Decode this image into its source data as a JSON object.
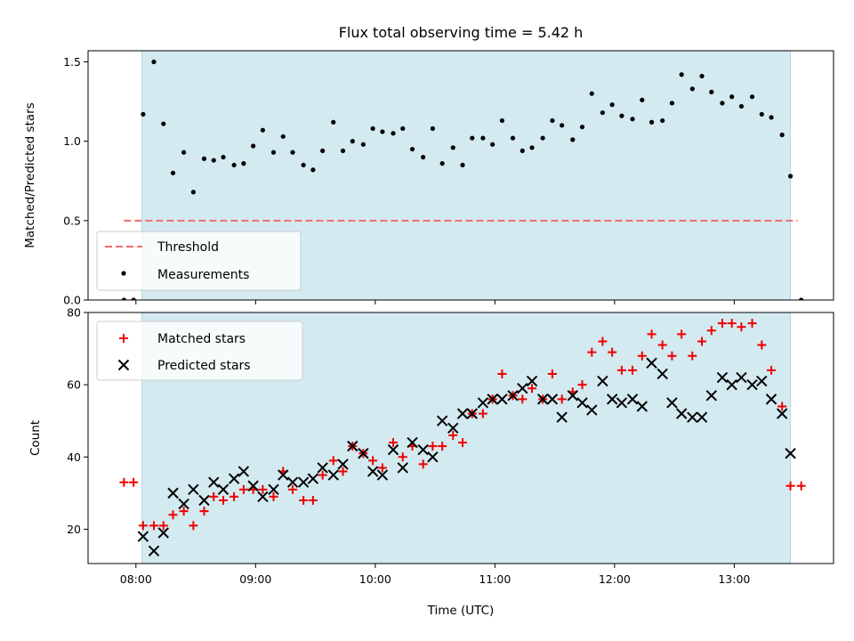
{
  "chart_data": [
    {
      "panel": "top",
      "type": "scatter",
      "title": "Flux total observing time = 5.42 h",
      "ylabel": "Matched/Predicted stars",
      "xlabel": "",
      "xlim": [
        7.6,
        13.83
      ],
      "ylim": [
        0,
        1.57
      ],
      "yticks": [
        0.0,
        0.5,
        1.0,
        1.5
      ],
      "ytick_labels": [
        "0.0",
        "0.5",
        "1.0",
        "1.5"
      ],
      "shaded_interval": [
        8.05,
        13.47
      ],
      "shade_color": "#d3eaf0",
      "threshold": {
        "name": "Threshold",
        "value": 0.5,
        "x_range": [
          7.9,
          13.53
        ],
        "color": "#f06d6d"
      },
      "legend": {
        "position": "lower-left",
        "entries": [
          "Threshold",
          "Measurements"
        ]
      },
      "series": [
        {
          "name": "Measurements",
          "marker": "dot",
          "color": "#000000",
          "x": [
            7.9,
            7.98,
            8.06,
            8.15,
            8.23,
            8.31,
            8.4,
            8.48,
            8.57,
            8.65,
            8.73,
            8.82,
            8.9,
            8.98,
            9.06,
            9.15,
            9.23,
            9.31,
            9.4,
            9.48,
            9.56,
            9.65,
            9.73,
            9.81,
            9.9,
            9.98,
            10.06,
            10.15,
            10.23,
            10.31,
            10.4,
            10.48,
            10.56,
            10.65,
            10.73,
            10.81,
            10.9,
            10.98,
            11.06,
            11.15,
            11.23,
            11.31,
            11.4,
            11.48,
            11.56,
            11.65,
            11.73,
            11.81,
            11.9,
            11.98,
            12.06,
            12.15,
            12.23,
            12.31,
            12.4,
            12.48,
            12.56,
            12.65,
            12.73,
            12.81,
            12.9,
            12.98,
            13.06,
            13.15,
            13.23,
            13.31,
            13.4,
            13.47,
            13.56
          ],
          "y": [
            0.0,
            0.0,
            1.17,
            1.5,
            1.11,
            0.8,
            0.93,
            0.68,
            0.89,
            0.88,
            0.9,
            0.85,
            0.86,
            0.97,
            1.07,
            0.93,
            1.03,
            0.93,
            0.85,
            0.82,
            0.94,
            1.12,
            0.94,
            1.0,
            0.98,
            1.08,
            1.06,
            1.05,
            1.08,
            0.95,
            0.9,
            1.08,
            0.86,
            0.96,
            0.85,
            1.02,
            1.02,
            0.98,
            1.13,
            1.02,
            0.94,
            0.96,
            1.02,
            1.13,
            1.1,
            1.01,
            1.09,
            1.3,
            1.18,
            1.23,
            1.16,
            1.14,
            1.26,
            1.12,
            1.13,
            1.24,
            1.42,
            1.33,
            1.41,
            1.31,
            1.24,
            1.28,
            1.22,
            1.28,
            1.17,
            1.15,
            1.04,
            0.78,
            0.0
          ]
        }
      ]
    },
    {
      "panel": "bottom",
      "type": "scatter",
      "title": "",
      "ylabel": "Count",
      "xlabel": "Time (UTC)",
      "xlim": [
        7.6,
        13.83
      ],
      "ylim": [
        10.5,
        80
      ],
      "yticks": [
        20,
        40,
        60,
        80
      ],
      "ytick_labels": [
        "20",
        "40",
        "60",
        "80"
      ],
      "xticks": [
        8,
        9,
        10,
        11,
        12,
        13
      ],
      "xtick_labels": [
        "08:00",
        "09:00",
        "10:00",
        "11:00",
        "12:00",
        "13:00"
      ],
      "shaded_interval": [
        8.05,
        13.47
      ],
      "shade_color": "#d3eaf0",
      "legend": {
        "position": "upper-left",
        "entries": [
          "Matched stars",
          "Predicted stars"
        ]
      },
      "series": [
        {
          "name": "Matched stars",
          "marker": "plus",
          "color": "#ee0000",
          "x": [
            7.9,
            7.98,
            8.06,
            8.15,
            8.23,
            8.31,
            8.4,
            8.48,
            8.57,
            8.65,
            8.73,
            8.82,
            8.9,
            8.98,
            9.06,
            9.15,
            9.23,
            9.31,
            9.4,
            9.48,
            9.56,
            9.65,
            9.73,
            9.81,
            9.9,
            9.98,
            10.06,
            10.15,
            10.23,
            10.31,
            10.4,
            10.48,
            10.56,
            10.65,
            10.73,
            10.81,
            10.9,
            10.98,
            11.06,
            11.15,
            11.23,
            11.31,
            11.4,
            11.48,
            11.56,
            11.65,
            11.73,
            11.81,
            11.9,
            11.98,
            12.06,
            12.15,
            12.23,
            12.31,
            12.4,
            12.48,
            12.56,
            12.65,
            12.73,
            12.81,
            12.9,
            12.98,
            13.06,
            13.15,
            13.23,
            13.31,
            13.4,
            13.47,
            13.56
          ],
          "y": [
            33,
            33,
            21,
            21,
            21,
            24,
            25,
            21,
            25,
            29,
            28,
            29,
            31,
            31,
            31,
            29,
            36,
            31,
            28,
            28,
            35,
            39,
            36,
            43,
            41,
            39,
            37,
            44,
            40,
            43,
            38,
            43,
            43,
            46,
            44,
            52,
            52,
            56,
            63,
            57,
            56,
            59,
            56,
            63,
            56,
            58,
            60,
            69,
            72,
            69,
            64,
            64,
            68,
            74,
            71,
            68,
            74,
            68,
            72,
            75,
            77,
            77,
            76,
            77,
            71,
            64,
            54,
            32,
            32
          ]
        },
        {
          "name": "Predicted stars",
          "marker": "x",
          "color": "#000000",
          "x": [
            8.06,
            8.15,
            8.23,
            8.31,
            8.4,
            8.48,
            8.57,
            8.65,
            8.73,
            8.82,
            8.9,
            8.98,
            9.06,
            9.15,
            9.23,
            9.31,
            9.4,
            9.48,
            9.56,
            9.65,
            9.73,
            9.81,
            9.9,
            9.98,
            10.06,
            10.15,
            10.23,
            10.31,
            10.4,
            10.48,
            10.56,
            10.65,
            10.73,
            10.81,
            10.9,
            10.98,
            11.06,
            11.15,
            11.23,
            11.31,
            11.4,
            11.48,
            11.56,
            11.65,
            11.73,
            11.81,
            11.9,
            11.98,
            12.06,
            12.15,
            12.23,
            12.31,
            12.4,
            12.48,
            12.56,
            12.65,
            12.73,
            12.81,
            12.9,
            12.98,
            13.06,
            13.15,
            13.23,
            13.31,
            13.4,
            13.47
          ],
          "y": [
            18,
            14,
            19,
            30,
            27,
            31,
            28,
            33,
            31,
            34,
            36,
            32,
            29,
            31,
            35,
            33,
            33,
            34,
            37,
            35,
            38,
            43,
            41,
            36,
            35,
            42,
            37,
            44,
            42,
            40,
            50,
            48,
            52,
            52,
            55,
            56,
            56,
            57,
            59,
            61,
            56,
            56,
            51,
            57,
            55,
            53,
            61,
            56,
            55,
            56,
            54,
            66,
            63,
            55,
            52,
            51,
            51,
            57,
            62,
            60,
            62,
            60,
            61,
            56,
            52,
            41
          ]
        }
      ]
    }
  ]
}
